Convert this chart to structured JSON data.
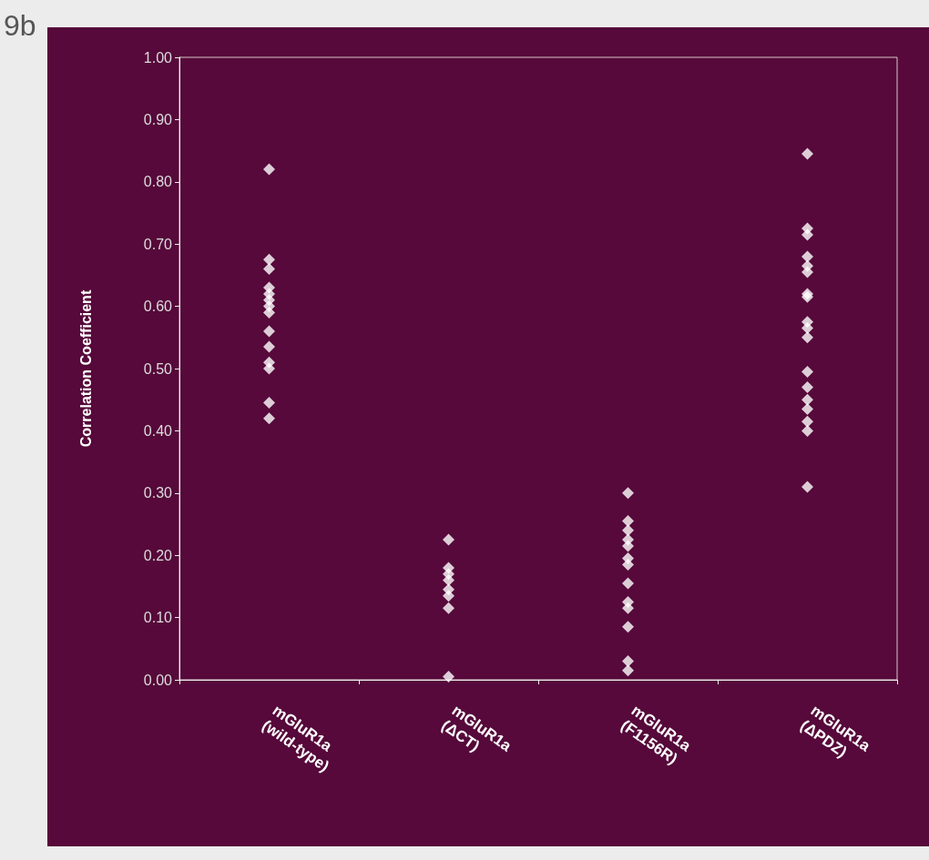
{
  "chart_data": {
    "type": "scatter",
    "annotations": [
      "9b"
    ],
    "ylabel": "Correlation Coefficient",
    "categories": [
      "mGluR1a (wild-type)",
      "mGluR1a (ΔCT)",
      "mGluR1a (F1156R)",
      "mGluR1a (ΔPDZ)"
    ],
    "series": [
      {
        "color": "#ffffff",
        "x": [
          "mGluR1a (wild-type)",
          "mGluR1a (wild-type)",
          "mGluR1a (wild-type)",
          "mGluR1a (wild-type)",
          "mGluR1a (wild-type)",
          "mGluR1a (wild-type)",
          "mGluR1a (wild-type)",
          "mGluR1a (wild-type)",
          "mGluR1a (wild-type)",
          "mGluR1a (wild-type)",
          "mGluR1a (wild-type)",
          "mGluR1a (wild-type)",
          "mGluR1a (wild-type)",
          "mGluR1a (wild-type)",
          "mGluR1a (ΔCT)",
          "mGluR1a (ΔCT)",
          "mGluR1a (ΔCT)",
          "mGluR1a (ΔCT)",
          "mGluR1a (ΔCT)",
          "mGluR1a (ΔCT)",
          "mGluR1a (ΔCT)",
          "mGluR1a (ΔCT)",
          "mGluR1a (F1156R)",
          "mGluR1a (F1156R)",
          "mGluR1a (F1156R)",
          "mGluR1a (F1156R)",
          "mGluR1a (F1156R)",
          "mGluR1a (F1156R)",
          "mGluR1a (F1156R)",
          "mGluR1a (F1156R)",
          "mGluR1a (F1156R)",
          "mGluR1a (F1156R)",
          "mGluR1a (F1156R)",
          "mGluR1a (F1156R)",
          "mGluR1a (F1156R)",
          "mGluR1a (ΔPDZ)",
          "mGluR1a (ΔPDZ)",
          "mGluR1a (ΔPDZ)",
          "mGluR1a (ΔPDZ)",
          "mGluR1a (ΔPDZ)",
          "mGluR1a (ΔPDZ)",
          "mGluR1a (ΔPDZ)",
          "mGluR1a (ΔPDZ)",
          "mGluR1a (ΔPDZ)",
          "mGluR1a (ΔPDZ)",
          "mGluR1a (ΔPDZ)",
          "mGluR1a (ΔPDZ)",
          "mGluR1a (ΔPDZ)",
          "mGluR1a (ΔPDZ)",
          "mGluR1a (ΔPDZ)",
          "mGluR1a (ΔPDZ)",
          "mGluR1a (ΔPDZ)",
          "mGluR1a (ΔPDZ)"
        ],
        "values": [
          0.82,
          0.675,
          0.66,
          0.63,
          0.62,
          0.61,
          0.6,
          0.59,
          0.56,
          0.535,
          0.51,
          0.5,
          0.445,
          0.42,
          0.225,
          0.18,
          0.17,
          0.16,
          0.145,
          0.135,
          0.115,
          0.005,
          0.3,
          0.255,
          0.24,
          0.225,
          0.215,
          0.195,
          0.185,
          0.155,
          0.125,
          0.115,
          0.085,
          0.03,
          0.015,
          0.845,
          0.725,
          0.715,
          0.68,
          0.665,
          0.655,
          0.62,
          0.615,
          0.575,
          0.565,
          0.55,
          0.495,
          0.47,
          0.45,
          0.435,
          0.415,
          0.4,
          0.31
        ]
      }
    ],
    "ylim": [
      0,
      1
    ],
    "yticks": [
      {
        "value": 0,
        "label": "0.00"
      },
      {
        "value": 0.1,
        "label": "0.10"
      },
      {
        "value": 0.2,
        "label": "0.20"
      },
      {
        "value": 0.3,
        "label": "0.30"
      },
      {
        "value": 0.4,
        "label": "0.40"
      },
      {
        "value": 0.5,
        "label": "0.50"
      },
      {
        "value": 0.6,
        "label": "0.60"
      },
      {
        "value": 0.7,
        "label": "0.70"
      },
      {
        "value": 0.8,
        "label": "0.80"
      },
      {
        "value": 0.9,
        "label": "0.90"
      },
      {
        "value": 1,
        "label": "1.00"
      }
    ],
    "grid": false,
    "marker": "diamond"
  }
}
